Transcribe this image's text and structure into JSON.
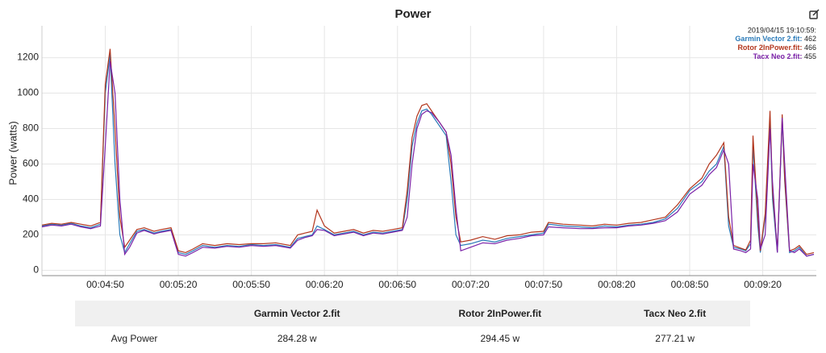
{
  "chart_data": {
    "type": "line",
    "title": "Power",
    "y_label": "Power (watts)",
    "x": [
      "00:04:24",
      "00:04:28",
      "00:04:32",
      "00:04:36",
      "00:04:40",
      "00:04:44",
      "00:04:48",
      "00:04:50",
      "00:04:52",
      "00:04:54",
      "00:04:56",
      "00:04:58",
      "00:05:00",
      "00:05:03",
      "00:05:06",
      "00:05:10",
      "00:05:13",
      "00:05:17",
      "00:05:20",
      "00:05:23",
      "00:05:26",
      "00:05:30",
      "00:05:35",
      "00:05:40",
      "00:05:45",
      "00:05:50",
      "00:05:55",
      "00:06:00",
      "00:06:06",
      "00:06:09",
      "00:06:12",
      "00:06:15",
      "00:06:17",
      "00:06:20",
      "00:06:24",
      "00:06:28",
      "00:06:32",
      "00:06:36",
      "00:06:40",
      "00:06:44",
      "00:06:48",
      "00:06:52",
      "00:06:54",
      "00:06:56",
      "00:06:58",
      "00:07:00",
      "00:07:02",
      "00:07:04",
      "00:07:07",
      "00:07:10",
      "00:07:12",
      "00:07:14",
      "00:07:16",
      "00:07:20",
      "00:07:25",
      "00:07:30",
      "00:07:35",
      "00:07:40",
      "00:07:45",
      "00:07:50",
      "00:07:52",
      "00:07:58",
      "00:08:05",
      "00:08:10",
      "00:08:15",
      "00:08:20",
      "00:08:25",
      "00:08:30",
      "00:08:35",
      "00:08:40",
      "00:08:45",
      "00:08:50",
      "00:08:55",
      "00:08:58",
      "00:09:01",
      "00:09:04",
      "00:09:06",
      "00:09:08",
      "00:09:11",
      "00:09:13",
      "00:09:15",
      "00:09:16",
      "00:09:18",
      "00:09:19",
      "00:09:21",
      "00:09:23",
      "00:09:24",
      "00:09:26",
      "00:09:28",
      "00:09:29",
      "00:09:31",
      "00:09:33",
      "00:09:35",
      "00:09:38",
      "00:09:41"
    ],
    "series": [
      {
        "name": "Garmin Vector 2.fit",
        "color": "#2b7bb9",
        "values": [
          250,
          260,
          255,
          265,
          250,
          240,
          260,
          1000,
          1220,
          600,
          200,
          100,
          150,
          220,
          230,
          210,
          220,
          230,
          100,
          90,
          110,
          140,
          130,
          140,
          135,
          145,
          140,
          145,
          130,
          180,
          190,
          200,
          250,
          230,
          200,
          210,
          220,
          200,
          215,
          210,
          220,
          230,
          400,
          700,
          830,
          900,
          910,
          880,
          820,
          760,
          500,
          200,
          140,
          150,
          170,
          160,
          180,
          190,
          200,
          210,
          260,
          250,
          245,
          240,
          250,
          245,
          255,
          260,
          270,
          290,
          350,
          450,
          500,
          560,
          600,
          700,
          250,
          130,
          120,
          110,
          150,
          700,
          250,
          100,
          300,
          850,
          400,
          100,
          850,
          500,
          100,
          110,
          130,
          80,
          90
        ]
      },
      {
        "name": "Rotor 2InPower.fit",
        "color": "#b3361d",
        "values": [
          255,
          265,
          260,
          270,
          260,
          250,
          270,
          1050,
          1250,
          800,
          300,
          130,
          170,
          230,
          240,
          220,
          230,
          240,
          110,
          100,
          120,
          150,
          140,
          150,
          145,
          150,
          150,
          155,
          140,
          200,
          210,
          220,
          340,
          250,
          210,
          220,
          230,
          210,
          225,
          220,
          230,
          240,
          450,
          750,
          870,
          930,
          940,
          900,
          840,
          780,
          600,
          300,
          160,
          170,
          190,
          175,
          195,
          200,
          215,
          220,
          270,
          260,
          255,
          250,
          260,
          255,
          265,
          270,
          285,
          300,
          370,
          460,
          520,
          600,
          650,
          720,
          300,
          140,
          125,
          115,
          170,
          760,
          300,
          110,
          320,
          900,
          450,
          110,
          880,
          520,
          110,
          120,
          140,
          90,
          100
        ]
      },
      {
        "name": "Tacx Neo 2.fit",
        "color": "#7b22a8",
        "values": [
          245,
          255,
          250,
          260,
          245,
          235,
          250,
          700,
          1180,
          1000,
          400,
          90,
          130,
          210,
          225,
          205,
          215,
          225,
          90,
          80,
          100,
          130,
          125,
          135,
          130,
          140,
          135,
          140,
          125,
          170,
          185,
          195,
          230,
          225,
          195,
          205,
          215,
          195,
          210,
          205,
          215,
          225,
          300,
          600,
          800,
          880,
          900,
          890,
          840,
          780,
          650,
          350,
          110,
          130,
          155,
          150,
          170,
          180,
          195,
          200,
          245,
          240,
          235,
          235,
          240,
          240,
          250,
          255,
          265,
          280,
          330,
          430,
          480,
          540,
          580,
          680,
          600,
          120,
          110,
          100,
          120,
          600,
          400,
          120,
          200,
          800,
          500,
          100,
          860,
          600,
          110,
          100,
          120,
          80,
          90
        ]
      }
    ],
    "xlim": [
      "00:04:24",
      "00:09:42"
    ],
    "xticks": [
      "00:04:50",
      "00:05:20",
      "00:05:50",
      "00:06:20",
      "00:06:50",
      "00:07:20",
      "00:07:50",
      "00:08:20",
      "00:08:50",
      "00:09:20"
    ],
    "ylim": [
      -30,
      1380
    ],
    "yticks": [
      0,
      200,
      400,
      600,
      800,
      1000,
      1200
    ],
    "grid": true,
    "tooltip": {
      "time": "2019/04/15 19:10:59:",
      "entries": [
        {
          "label": "Garmin Vector 2.fit:",
          "value": 462
        },
        {
          "label": "Rotor 2InPower.fit:",
          "value": 466
        },
        {
          "label": "Tacx Neo 2.fit:",
          "value": 455
        }
      ]
    }
  },
  "table": {
    "columns": [
      "Garmin Vector 2.fit",
      "Rotor 2InPower.fit",
      "Tacx Neo 2.fit"
    ],
    "rows": [
      {
        "label": "Avg Power",
        "cells": [
          "284.28 w",
          "294.45 w",
          "277.21 w"
        ]
      }
    ]
  }
}
